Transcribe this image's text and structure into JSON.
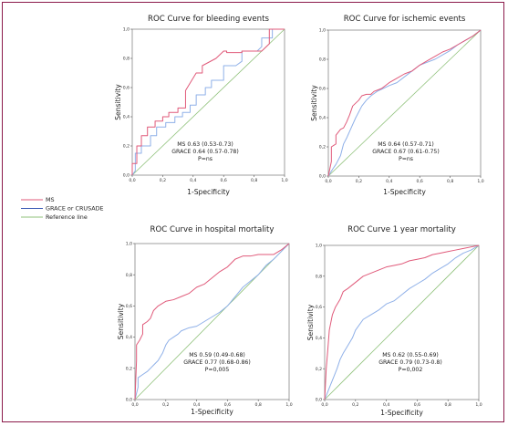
{
  "colors": {
    "ms": "#e05a7a",
    "score": "#8fb0e8",
    "reference": "#8fc17a",
    "frame": "#8b1a4a"
  },
  "legend": [
    {
      "label": "MS",
      "color": "#e05a7a"
    },
    {
      "label": "GRACE or CRUSADE",
      "color": "#3b5bb5"
    },
    {
      "label": "Reference line",
      "color": "#8fc17a"
    }
  ],
  "chart_data": [
    {
      "type": "line",
      "title": "ROC Curve for bleeding events",
      "xlabel": "1-Specificity",
      "ylabel": "Sensitivity",
      "xlim": [
        0,
        1
      ],
      "ylim": [
        0,
        1
      ],
      "xticks": [
        "0,0",
        "0,2",
        "0,4",
        "0,6",
        "0,8",
        "1,0"
      ],
      "yticks": [
        "0,0",
        "0,2",
        "0,4",
        "0,6",
        "0,8",
        "1,0"
      ],
      "annotation": [
        "MS 0.63 (0.53-0.73)",
        "GRACE 0.64 (0.57-0.78)",
        "P=ns"
      ],
      "series": [
        {
          "name": "MS",
          "x": [
            0,
            0,
            0.03,
            0.03,
            0.06,
            0.06,
            0.1,
            0.1,
            0.15,
            0.15,
            0.2,
            0.2,
            0.24,
            0.24,
            0.3,
            0.3,
            0.35,
            0.35,
            0.42,
            0.46,
            0.46,
            0.55,
            0.6,
            0.62,
            0.62,
            0.72,
            0.72,
            0.85,
            0.9,
            0.9,
            1
          ],
          "y": [
            0,
            0.08,
            0.08,
            0.2,
            0.2,
            0.27,
            0.27,
            0.33,
            0.33,
            0.37,
            0.37,
            0.4,
            0.4,
            0.43,
            0.43,
            0.46,
            0.46,
            0.58,
            0.7,
            0.7,
            0.75,
            0.8,
            0.85,
            0.85,
            0.84,
            0.84,
            0.85,
            0.85,
            0.9,
            1,
            1
          ]
        },
        {
          "name": "GRACE or CRUSADE",
          "x": [
            0,
            0.02,
            0.02,
            0.06,
            0.06,
            0.12,
            0.12,
            0.16,
            0.16,
            0.22,
            0.22,
            0.28,
            0.28,
            0.33,
            0.33,
            0.38,
            0.38,
            0.42,
            0.42,
            0.48,
            0.48,
            0.52,
            0.52,
            0.6,
            0.6,
            0.68,
            0.72,
            0.72,
            0.82,
            0.85,
            0.85,
            0.92,
            0.92,
            1
          ],
          "y": [
            0,
            0.03,
            0.15,
            0.15,
            0.2,
            0.2,
            0.27,
            0.27,
            0.33,
            0.33,
            0.36,
            0.36,
            0.4,
            0.4,
            0.43,
            0.43,
            0.48,
            0.48,
            0.55,
            0.55,
            0.6,
            0.6,
            0.65,
            0.65,
            0.75,
            0.75,
            0.78,
            0.85,
            0.85,
            0.88,
            0.94,
            0.94,
            1,
            1
          ]
        },
        {
          "name": "Reference line",
          "x": [
            0,
            1
          ],
          "y": [
            0,
            1
          ]
        }
      ]
    },
    {
      "type": "line",
      "title": "ROC Curve for ischemic events",
      "xlabel": "1-Specificity",
      "ylabel": "Sensitivity",
      "xlim": [
        0,
        1
      ],
      "ylim": [
        0,
        1
      ],
      "xticks": [
        "0,0",
        "0,2",
        "0,4",
        "0,6",
        "0,8",
        "1,0"
      ],
      "yticks": [
        "0,0",
        "0,2",
        "0,4",
        "0,6",
        "0,8",
        "1,0"
      ],
      "annotation": [
        "MS 0.64 (0.57-0.71)",
        "GRACE 0.67 (0.61-0.75)",
        "P=ns"
      ],
      "series": [
        {
          "name": "MS",
          "x": [
            0,
            0.02,
            0.02,
            0.05,
            0.05,
            0.08,
            0.1,
            0.12,
            0.14,
            0.16,
            0.2,
            0.22,
            0.25,
            0.28,
            0.3,
            0.35,
            0.4,
            0.45,
            0.5,
            0.55,
            0.6,
            0.65,
            0.7,
            0.75,
            0.8,
            0.85,
            0.9,
            0.95,
            1
          ],
          "y": [
            0,
            0.1,
            0.2,
            0.22,
            0.28,
            0.32,
            0.33,
            0.37,
            0.42,
            0.48,
            0.52,
            0.55,
            0.56,
            0.56,
            0.58,
            0.6,
            0.64,
            0.67,
            0.7,
            0.72,
            0.76,
            0.79,
            0.82,
            0.85,
            0.87,
            0.9,
            0.93,
            0.96,
            1
          ]
        },
        {
          "name": "GRACE or CRUSADE",
          "x": [
            0,
            0.03,
            0.05,
            0.08,
            0.1,
            0.12,
            0.15,
            0.18,
            0.2,
            0.22,
            0.25,
            0.28,
            0.32,
            0.36,
            0.4,
            0.45,
            0.5,
            0.55,
            0.6,
            0.65,
            0.7,
            0.75,
            0.8,
            0.85,
            0.9,
            0.95,
            1
          ],
          "y": [
            0,
            0.05,
            0.08,
            0.14,
            0.22,
            0.26,
            0.33,
            0.4,
            0.44,
            0.48,
            0.52,
            0.55,
            0.58,
            0.6,
            0.62,
            0.64,
            0.68,
            0.72,
            0.76,
            0.78,
            0.8,
            0.83,
            0.86,
            0.9,
            0.93,
            0.96,
            1
          ]
        },
        {
          "name": "Reference line",
          "x": [
            0,
            1
          ],
          "y": [
            0,
            1
          ]
        }
      ]
    },
    {
      "type": "line",
      "title": "ROC Curve in hospital mortality",
      "xlabel": "1-Specificity",
      "ylabel": "Sensitivity",
      "xlim": [
        0,
        1
      ],
      "ylim": [
        0,
        1
      ],
      "xticks": [
        "0,0",
        "0,2",
        "0,4",
        "0,6",
        "0,8",
        "1,0"
      ],
      "yticks": [
        "0,0",
        "0,2",
        "0,4",
        "0,6",
        "0,8",
        "1,0"
      ],
      "annotation": [
        "MS 0.59 (0.49-0.68)",
        "GRACE 0.77 (0.68-0.86)",
        "P=0,005"
      ],
      "series": [
        {
          "name": "MS",
          "x": [
            0,
            0.01,
            0.01,
            0.03,
            0.05,
            0.05,
            0.08,
            0.1,
            0.12,
            0.15,
            0.2,
            0.25,
            0.3,
            0.35,
            0.4,
            0.45,
            0.5,
            0.55,
            0.6,
            0.65,
            0.7,
            0.75,
            0.8,
            0.9,
            0.95,
            1
          ],
          "y": [
            0,
            0.25,
            0.35,
            0.38,
            0.42,
            0.48,
            0.5,
            0.52,
            0.57,
            0.6,
            0.63,
            0.64,
            0.66,
            0.68,
            0.72,
            0.74,
            0.78,
            0.82,
            0.85,
            0.9,
            0.92,
            0.92,
            0.93,
            0.93,
            0.96,
            1
          ]
        },
        {
          "name": "GRACE or CRUSADE",
          "x": [
            0,
            0.02,
            0.02,
            0.05,
            0.08,
            0.1,
            0.12,
            0.15,
            0.18,
            0.2,
            0.22,
            0.25,
            0.28,
            0.3,
            0.35,
            0.4,
            0.45,
            0.5,
            0.55,
            0.6,
            0.65,
            0.7,
            0.75,
            0.8,
            0.85,
            0.9,
            0.95,
            1
          ],
          "y": [
            0,
            0.08,
            0.14,
            0.16,
            0.18,
            0.2,
            0.22,
            0.25,
            0.3,
            0.35,
            0.38,
            0.4,
            0.42,
            0.44,
            0.46,
            0.47,
            0.5,
            0.53,
            0.56,
            0.6,
            0.66,
            0.72,
            0.76,
            0.8,
            0.86,
            0.9,
            0.95,
            1
          ]
        },
        {
          "name": "Reference line",
          "x": [
            0,
            1
          ],
          "y": [
            0,
            1
          ]
        }
      ]
    },
    {
      "type": "line",
      "title": "ROC Curve 1 year mortality",
      "xlabel": "1-Specificity",
      "ylabel": "Sensitivity",
      "xlim": [
        0,
        1
      ],
      "ylim": [
        0,
        1
      ],
      "xticks": [
        "0,0",
        "0,2",
        "0,4",
        "0,6",
        "0,8",
        "1,0"
      ],
      "yticks": [
        "0,0",
        "0,2",
        "0,4",
        "0,6",
        "0,8",
        "1,0"
      ],
      "annotation": [
        "MS 0.62 (0.55-0.69)",
        "GRACE 0.79 (0.73-0.8)",
        "P=0,002"
      ],
      "series": [
        {
          "name": "MS",
          "x": [
            0,
            0.01,
            0.02,
            0.03,
            0.05,
            0.07,
            0.1,
            0.12,
            0.15,
            0.2,
            0.25,
            0.3,
            0.35,
            0.4,
            0.45,
            0.5,
            0.55,
            0.6,
            0.65,
            0.7,
            0.75,
            0.8,
            0.85,
            0.9,
            0.95,
            1
          ],
          "y": [
            0,
            0.2,
            0.32,
            0.45,
            0.55,
            0.6,
            0.65,
            0.7,
            0.72,
            0.76,
            0.8,
            0.82,
            0.84,
            0.86,
            0.87,
            0.88,
            0.9,
            0.91,
            0.92,
            0.94,
            0.95,
            0.96,
            0.97,
            0.98,
            0.99,
            1
          ]
        },
        {
          "name": "GRACE or CRUSADE",
          "x": [
            0,
            0.02,
            0.04,
            0.06,
            0.08,
            0.1,
            0.12,
            0.15,
            0.18,
            0.2,
            0.25,
            0.3,
            0.35,
            0.4,
            0.45,
            0.5,
            0.55,
            0.6,
            0.65,
            0.7,
            0.75,
            0.8,
            0.85,
            0.9,
            0.95,
            1
          ],
          "y": [
            0,
            0.05,
            0.1,
            0.15,
            0.2,
            0.26,
            0.3,
            0.35,
            0.4,
            0.45,
            0.52,
            0.55,
            0.58,
            0.62,
            0.64,
            0.68,
            0.72,
            0.75,
            0.78,
            0.82,
            0.85,
            0.88,
            0.92,
            0.95,
            0.97,
            1
          ]
        },
        {
          "name": "Reference line",
          "x": [
            0,
            1
          ],
          "y": [
            0,
            1
          ]
        }
      ]
    }
  ]
}
